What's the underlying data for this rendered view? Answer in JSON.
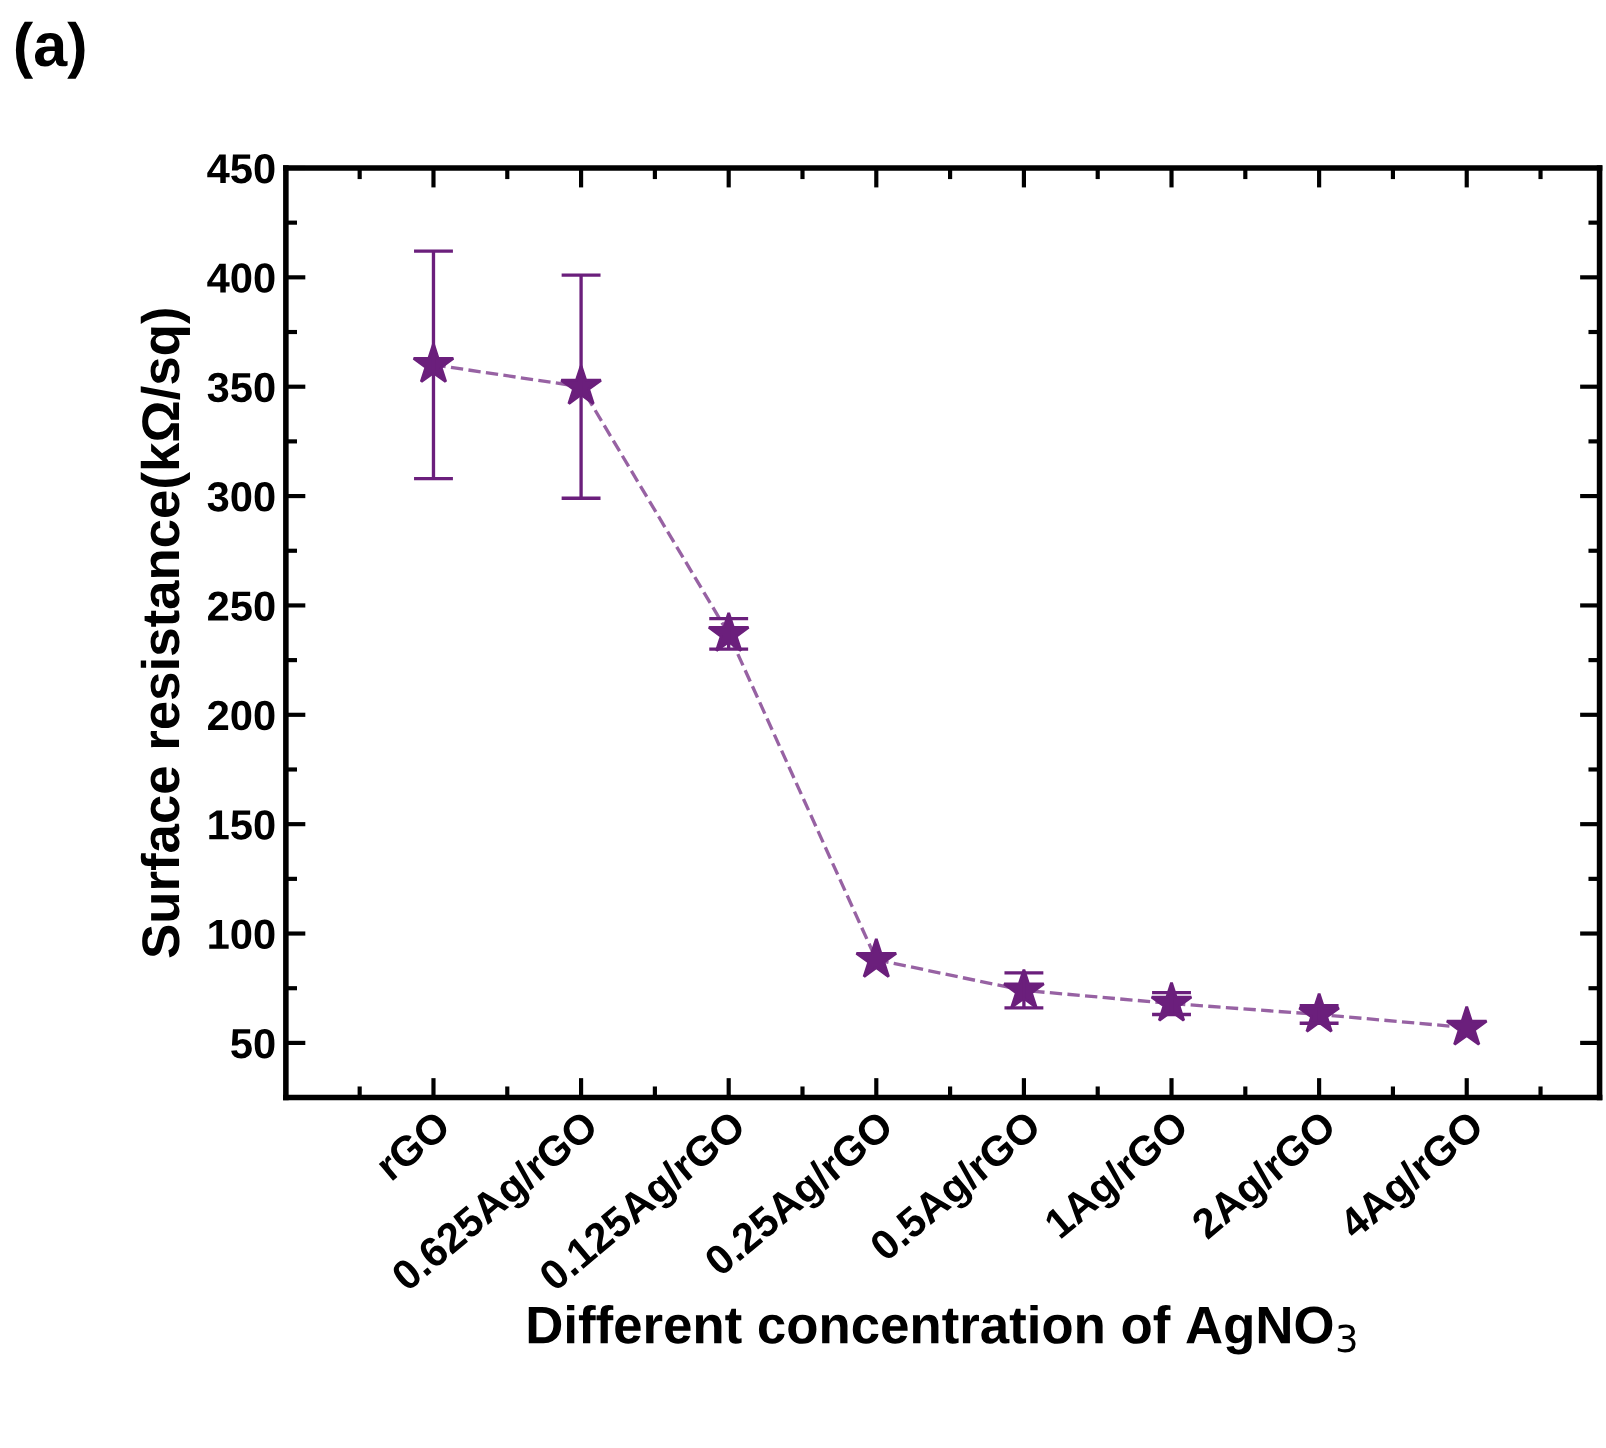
{
  "chart_data": {
    "type": "line",
    "title": "(a)",
    "xlabel": "Different concentration of AgNO$_{3}$",
    "ylabel": "Surface resistance(kΩ/sq)",
    "categories": [
      "rGO",
      "0.625Ag/rGO",
      "0.125Ag/rGO",
      "0.25Ag/rGO",
      "0.5Ag/rGO",
      "1Ag/rGO",
      "2Ag/rGO",
      "4Ag/rGO"
    ],
    "series": [
      {
        "color": "#6b1f7c",
        "values": [
          360,
          350,
          237,
          88,
          74,
          68,
          63,
          57
        ],
        "errors": [
          52,
          51,
          7,
          null,
          8,
          5,
          4,
          null
        ]
      }
    ],
    "ylim": [
      25,
      450
    ],
    "yticks": [
      50,
      100,
      150,
      200,
      250,
      300,
      350,
      400,
      450
    ],
    "marker": "star",
    "line_style": "dashed",
    "grid": false,
    "legend": false
  }
}
